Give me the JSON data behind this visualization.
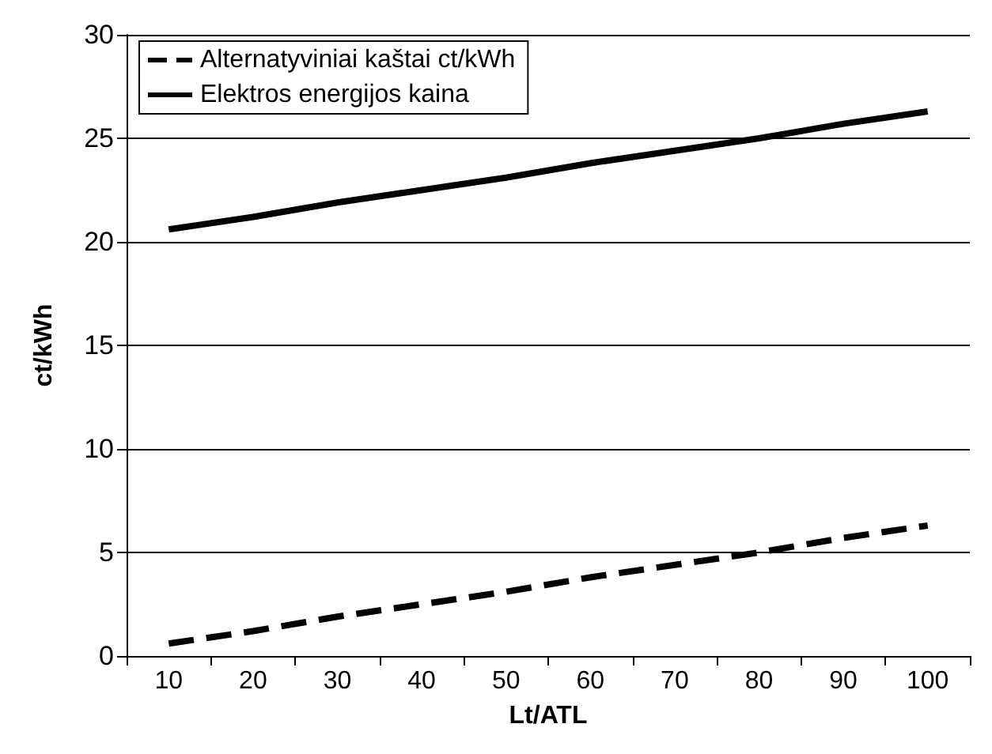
{
  "chart_data": {
    "type": "line",
    "xlabel": "Lt/ATL",
    "ylabel": "ct/kWh",
    "categories": [
      "10",
      "20",
      "30",
      "40",
      "50",
      "60",
      "70",
      "80",
      "90",
      "100"
    ],
    "series": [
      {
        "name": "Alternatyviniai kaštai ct/kWh",
        "color": "#000000",
        "line_style": "dashed",
        "values": [
          0.6,
          1.2,
          1.9,
          2.5,
          3.1,
          3.8,
          4.4,
          5.0,
          5.7,
          6.3
        ]
      },
      {
        "name": "Elektros energijos kaina",
        "color": "#000000",
        "line_style": "solid",
        "values": [
          20.6,
          21.2,
          21.9,
          22.5,
          23.1,
          23.8,
          24.4,
          25.0,
          25.7,
          26.3
        ]
      }
    ],
    "ylim": [
      0,
      30
    ],
    "yticks": [
      0,
      5,
      10,
      15,
      20,
      25,
      30
    ],
    "grid": "y",
    "legend": "top left",
    "marker": "none"
  }
}
